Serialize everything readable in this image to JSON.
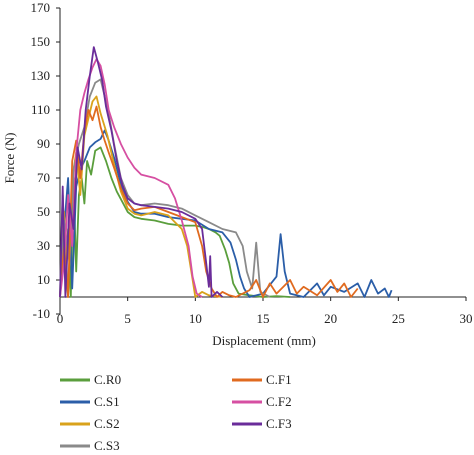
{
  "chart_data": {
    "type": "line",
    "xlabel": "Displacement (mm)",
    "ylabel": "Force (N)",
    "xlim": [
      0,
      30
    ],
    "ylim": [
      -10,
      170
    ],
    "xticks": [
      0,
      5,
      10,
      15,
      20,
      25,
      30
    ],
    "yticks": [
      -10,
      10,
      30,
      50,
      70,
      90,
      110,
      130,
      150,
      170
    ],
    "grid": false,
    "legend_position": "bottom",
    "series": [
      {
        "name": "C.R0",
        "color": "#5a9e3c",
        "points": [
          [
            0,
            0
          ],
          [
            0.2,
            60
          ],
          [
            0.4,
            10
          ],
          [
            0.6,
            40
          ],
          [
            0.8,
            0
          ],
          [
            1.0,
            70
          ],
          [
            1.2,
            15
          ],
          [
            1.4,
            60
          ],
          [
            1.6,
            70
          ],
          [
            1.8,
            55
          ],
          [
            2.0,
            80
          ],
          [
            2.3,
            72
          ],
          [
            2.6,
            86
          ],
          [
            3.0,
            88
          ],
          [
            3.4,
            80
          ],
          [
            3.8,
            70
          ],
          [
            4.2,
            62
          ],
          [
            4.6,
            56
          ],
          [
            5.0,
            50
          ],
          [
            5.5,
            47
          ],
          [
            6.0,
            46
          ],
          [
            7.0,
            45
          ],
          [
            8.0,
            43
          ],
          [
            9.0,
            42
          ],
          [
            10.0,
            42
          ],
          [
            10.6,
            41
          ],
          [
            11.0,
            40
          ],
          [
            11.5,
            38
          ],
          [
            11.8,
            36
          ],
          [
            12.2,
            28
          ],
          [
            12.5,
            20
          ],
          [
            12.8,
            8
          ],
          [
            13.2,
            2
          ],
          [
            14,
            1
          ],
          [
            15,
            0
          ],
          [
            16,
            0.5
          ],
          [
            17,
            0
          ]
        ]
      },
      {
        "name": "C.S1",
        "color": "#2b5ea8",
        "points": [
          [
            0,
            0
          ],
          [
            0.3,
            40
          ],
          [
            0.6,
            70
          ],
          [
            0.9,
            5
          ],
          [
            1.2,
            65
          ],
          [
            1.5,
            75
          ],
          [
            1.8,
            80
          ],
          [
            2.2,
            88
          ],
          [
            2.6,
            91
          ],
          [
            3.0,
            93
          ],
          [
            3.3,
            98
          ],
          [
            3.6,
            92
          ],
          [
            4.0,
            82
          ],
          [
            4.5,
            66
          ],
          [
            5.0,
            56
          ],
          [
            5.5,
            50
          ],
          [
            6.0,
            49
          ],
          [
            7.0,
            49
          ],
          [
            8.0,
            47
          ],
          [
            9.0,
            46
          ],
          [
            10.0,
            45
          ],
          [
            11.0,
            40
          ],
          [
            12.0,
            38
          ],
          [
            12.6,
            32
          ],
          [
            13.0,
            22
          ],
          [
            13.3,
            12
          ],
          [
            13.6,
            5
          ],
          [
            14,
            0
          ],
          [
            15,
            2
          ],
          [
            16,
            12
          ],
          [
            16.3,
            37
          ],
          [
            16.6,
            15
          ],
          [
            17,
            2
          ],
          [
            18,
            0
          ],
          [
            19,
            8
          ],
          [
            19.5,
            1
          ],
          [
            20,
            6
          ],
          [
            21,
            3
          ],
          [
            22,
            8
          ],
          [
            22.5,
            0
          ],
          [
            23,
            10
          ],
          [
            23.5,
            2
          ],
          [
            24,
            5
          ],
          [
            24.3,
            0
          ],
          [
            24.5,
            4
          ]
        ]
      },
      {
        "name": "C.S2",
        "color": "#d9a21b",
        "points": [
          [
            0,
            0
          ],
          [
            0.3,
            50
          ],
          [
            0.6,
            0
          ],
          [
            0.9,
            70
          ],
          [
            1.2,
            85
          ],
          [
            1.5,
            60
          ],
          [
            1.8,
            95
          ],
          [
            2.1,
            105
          ],
          [
            2.4,
            115
          ],
          [
            2.7,
            118
          ],
          [
            3.0,
            108
          ],
          [
            3.5,
            95
          ],
          [
            4.0,
            78
          ],
          [
            4.5,
            62
          ],
          [
            5.0,
            52
          ],
          [
            5.5,
            49
          ],
          [
            6.0,
            48
          ],
          [
            7.0,
            50
          ],
          [
            8.0,
            48
          ],
          [
            8.5,
            44
          ],
          [
            9.0,
            40
          ],
          [
            9.4,
            30
          ],
          [
            9.7,
            15
          ],
          [
            10.0,
            0
          ],
          [
            10.5,
            3
          ],
          [
            11.0,
            1
          ],
          [
            12.0,
            0
          ]
        ]
      },
      {
        "name": "C.S3",
        "color": "#8a8a8a",
        "points": [
          [
            0,
            0
          ],
          [
            0.3,
            45
          ],
          [
            0.7,
            20
          ],
          [
            1.0,
            75
          ],
          [
            1.4,
            90
          ],
          [
            1.8,
            100
          ],
          [
            2.2,
            118
          ],
          [
            2.6,
            126
          ],
          [
            3.0,
            128
          ],
          [
            3.3,
            118
          ],
          [
            3.6,
            108
          ],
          [
            4.0,
            90
          ],
          [
            4.5,
            70
          ],
          [
            5.0,
            60
          ],
          [
            5.5,
            55
          ],
          [
            6.0,
            54
          ],
          [
            7.0,
            55
          ],
          [
            8.0,
            54
          ],
          [
            9.0,
            52
          ],
          [
            10.0,
            48
          ],
          [
            11.0,
            44
          ],
          [
            12.0,
            40
          ],
          [
            13.0,
            38
          ],
          [
            13.5,
            30
          ],
          [
            13.8,
            15
          ],
          [
            14.2,
            5
          ],
          [
            14.5,
            32
          ],
          [
            14.8,
            3
          ],
          [
            15.5,
            0
          ]
        ]
      },
      {
        "name": "C.F1",
        "color": "#e06a1f",
        "points": [
          [
            0,
            0
          ],
          [
            0.3,
            30
          ],
          [
            0.6,
            0
          ],
          [
            0.9,
            80
          ],
          [
            1.2,
            92
          ],
          [
            1.5,
            70
          ],
          [
            1.8,
            98
          ],
          [
            2.1,
            110
          ],
          [
            2.4,
            104
          ],
          [
            2.7,
            112
          ],
          [
            3.0,
            100
          ],
          [
            3.3,
            92
          ],
          [
            3.6,
            85
          ],
          [
            4.0,
            76
          ],
          [
            4.5,
            64
          ],
          [
            5.0,
            55
          ],
          [
            5.5,
            51
          ],
          [
            6.0,
            52
          ],
          [
            7.0,
            53
          ],
          [
            8.0,
            50
          ],
          [
            9.0,
            47
          ],
          [
            10.0,
            44
          ],
          [
            10.5,
            30
          ],
          [
            10.8,
            15
          ],
          [
            11.2,
            5
          ],
          [
            11.6,
            0
          ],
          [
            12.0,
            3
          ],
          [
            12.5,
            1
          ],
          [
            13,
            0
          ],
          [
            14,
            4
          ],
          [
            14.5,
            10
          ],
          [
            15.0,
            0
          ],
          [
            15.5,
            8
          ],
          [
            16,
            2
          ],
          [
            17,
            10
          ],
          [
            17.5,
            2
          ],
          [
            18,
            6
          ],
          [
            19,
            1
          ],
          [
            20,
            10
          ],
          [
            20.5,
            3
          ],
          [
            21,
            8
          ],
          [
            21.5,
            0
          ],
          [
            22,
            5
          ]
        ]
      },
      {
        "name": "C.F2",
        "color": "#d64fa2",
        "points": [
          [
            0,
            0
          ],
          [
            0.3,
            20
          ],
          [
            0.6,
            60
          ],
          [
            0.9,
            30
          ],
          [
            1.2,
            85
          ],
          [
            1.5,
            110
          ],
          [
            1.8,
            120
          ],
          [
            2.1,
            128
          ],
          [
            2.4,
            135
          ],
          [
            2.7,
            140
          ],
          [
            3.0,
            136
          ],
          [
            3.3,
            125
          ],
          [
            3.6,
            110
          ],
          [
            4.0,
            100
          ],
          [
            4.5,
            90
          ],
          [
            5.0,
            82
          ],
          [
            5.5,
            76
          ],
          [
            6.0,
            72
          ],
          [
            7.0,
            70
          ],
          [
            8.0,
            66
          ],
          [
            8.5,
            58
          ],
          [
            9.0,
            45
          ],
          [
            9.5,
            30
          ],
          [
            9.8,
            12
          ],
          [
            10.1,
            2
          ],
          [
            10.5,
            0
          ]
        ]
      },
      {
        "name": "C.F3",
        "color": "#6a2c9a",
        "points": [
          [
            0,
            0
          ],
          [
            0.2,
            65
          ],
          [
            0.4,
            0
          ],
          [
            0.7,
            55
          ],
          [
            1.0,
            40
          ],
          [
            1.3,
            88
          ],
          [
            1.6,
            75
          ],
          [
            1.9,
            110
          ],
          [
            2.2,
            130
          ],
          [
            2.5,
            147
          ],
          [
            2.8,
            138
          ],
          [
            3.1,
            128
          ],
          [
            3.4,
            112
          ],
          [
            3.8,
            98
          ],
          [
            4.2,
            80
          ],
          [
            4.6,
            66
          ],
          [
            5.0,
            58
          ],
          [
            5.5,
            55
          ],
          [
            6.0,
            54
          ],
          [
            7.0,
            53
          ],
          [
            8.0,
            52
          ],
          [
            9.0,
            50
          ],
          [
            10.0,
            46
          ],
          [
            10.5,
            40
          ],
          [
            10.8,
            20
          ],
          [
            11.0,
            6
          ],
          [
            11.1,
            24
          ],
          [
            11.2,
            0
          ],
          [
            11.6,
            3
          ],
          [
            12,
            0
          ]
        ]
      }
    ]
  }
}
